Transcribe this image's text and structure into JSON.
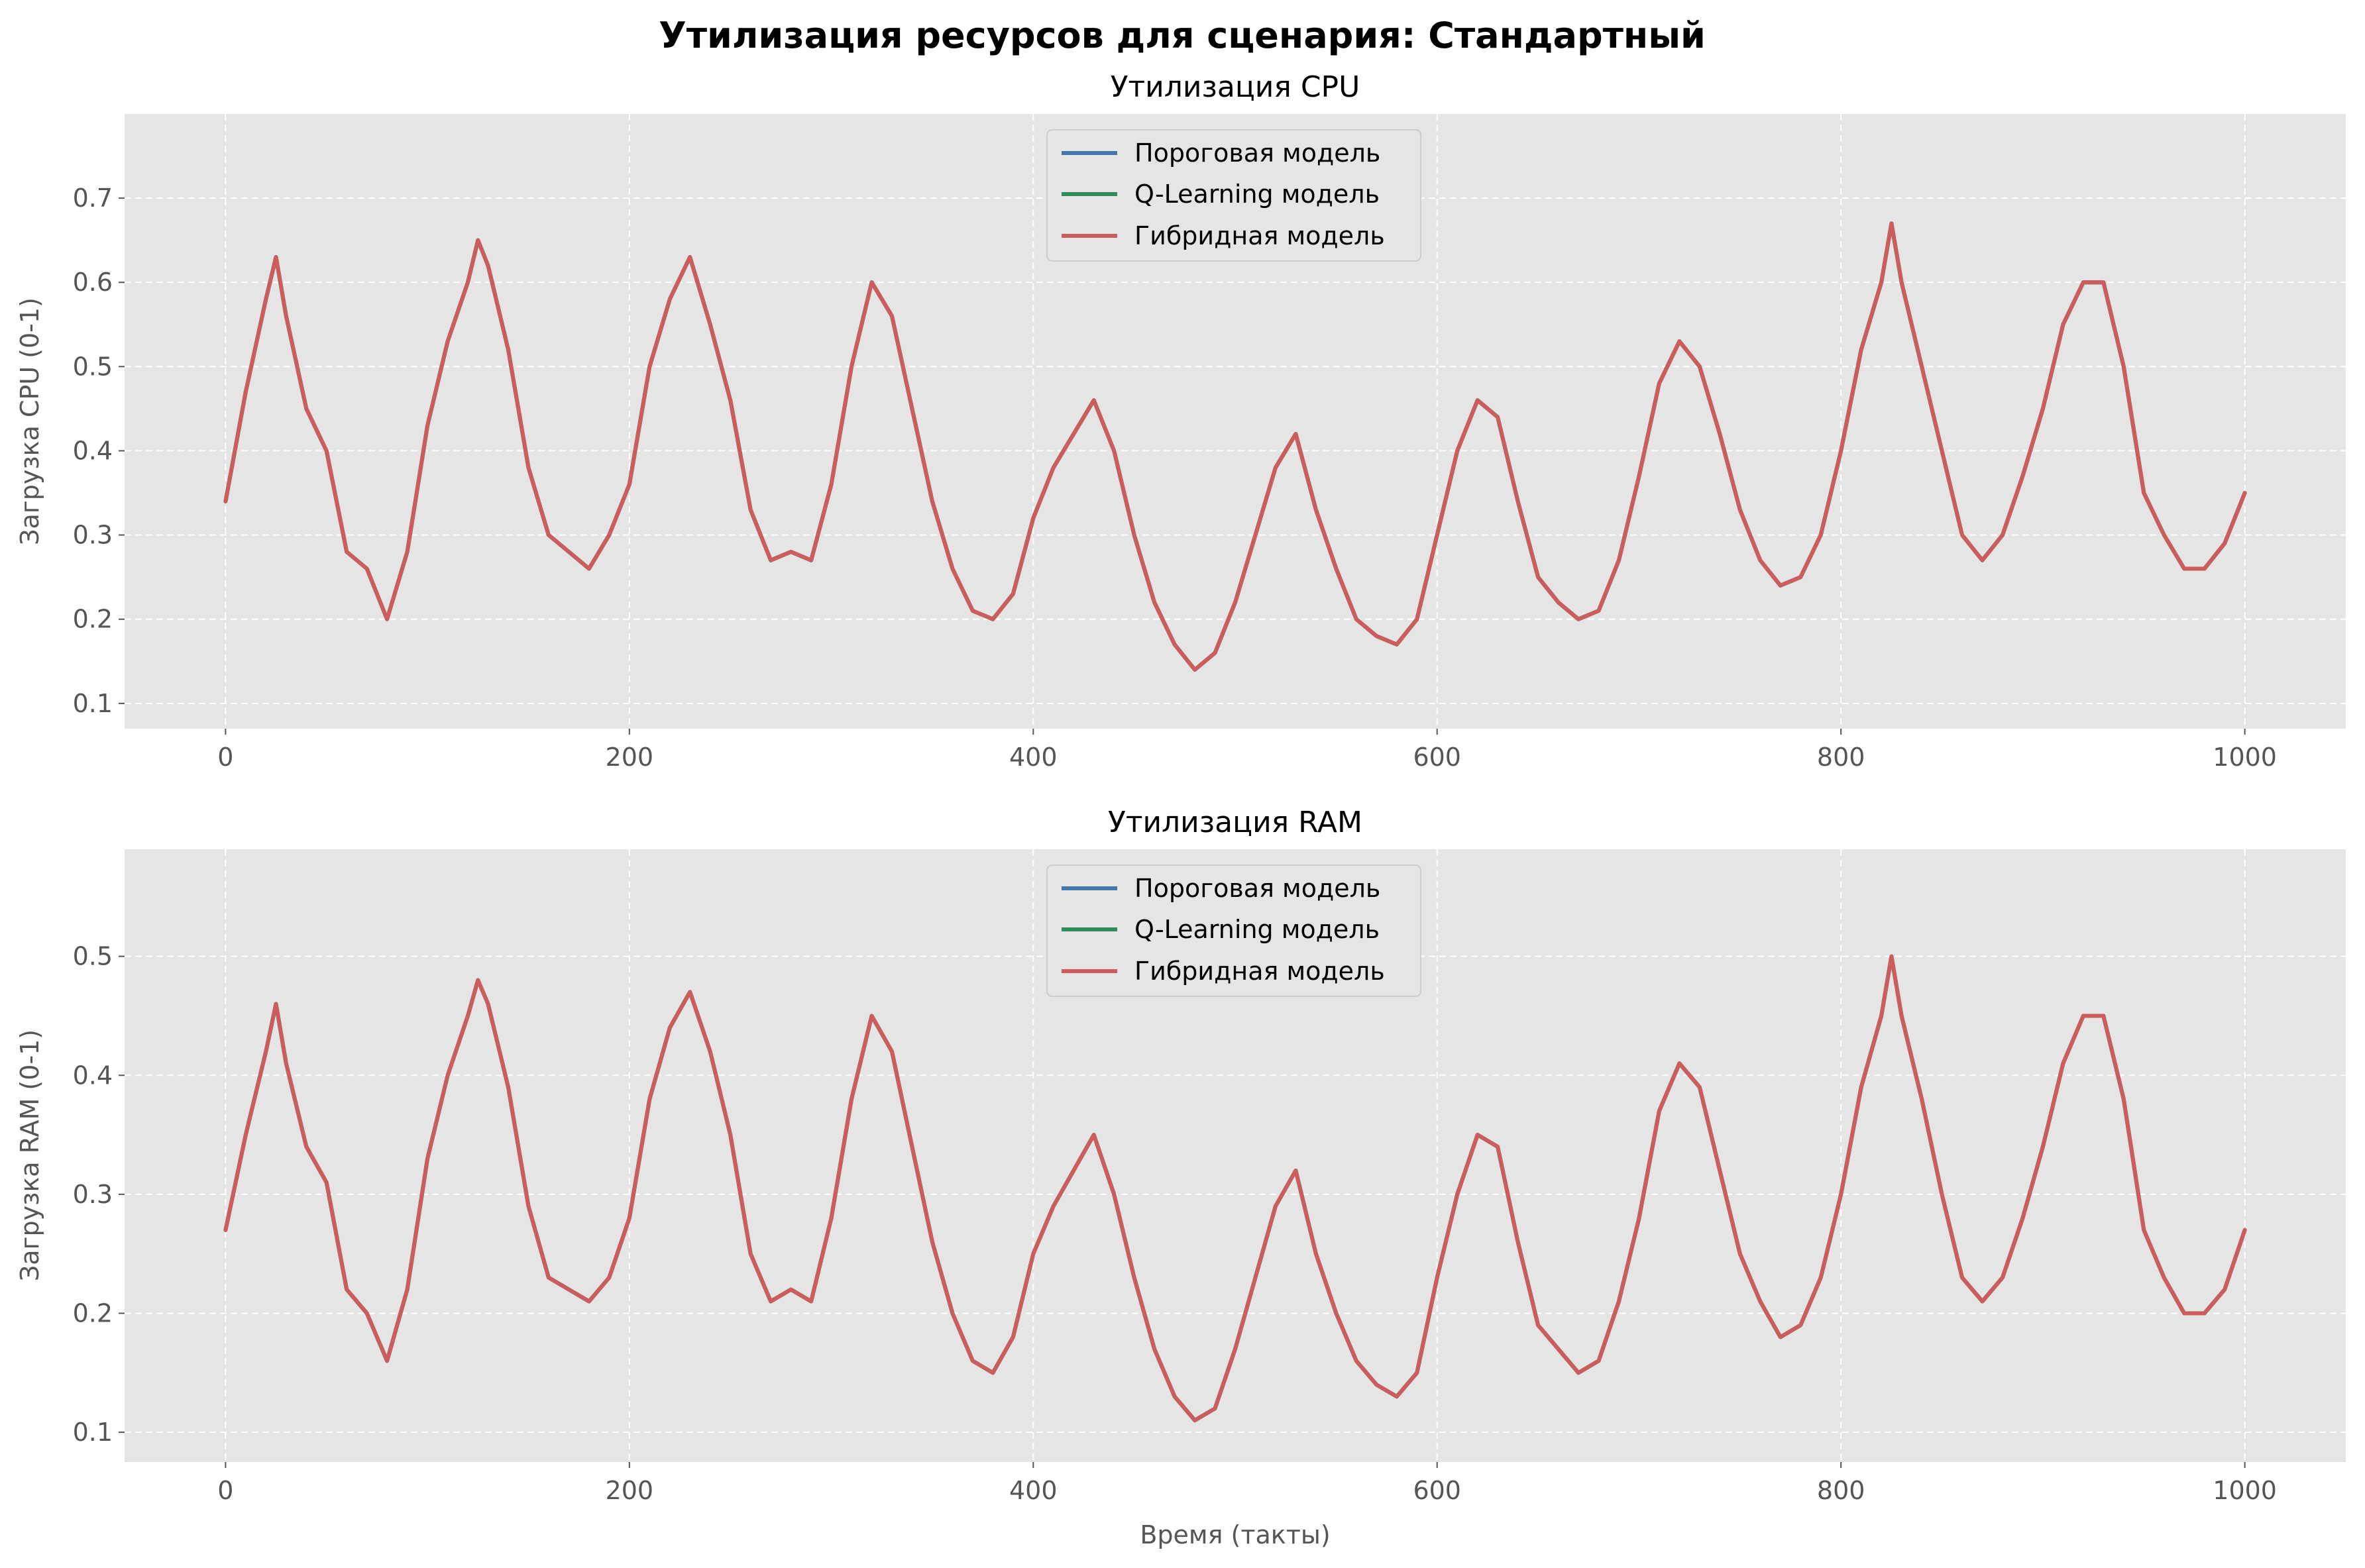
{
  "figure": {
    "suptitle": "Утилизация ресурсов для сценария: Стандартный",
    "background": "#ffffff",
    "axes_facecolor": "#e5e5e5",
    "grid_color": "#ffffff"
  },
  "chart_data": [
    {
      "type": "line",
      "title": "Утилизация CPU",
      "xlabel": "",
      "ylabel": "Загрузка CPU (0-1)",
      "xlim": [
        -50,
        1050
      ],
      "ylim": [
        0.07,
        0.8
      ],
      "xticks": [
        0,
        200,
        400,
        600,
        800,
        1000
      ],
      "yticks": [
        0.1,
        0.2,
        0.3,
        0.4,
        0.5,
        0.6,
        0.7
      ],
      "ytick_labels": [
        "0.1",
        "0.2",
        "0.3",
        "0.4",
        "0.5",
        "0.6",
        "0.7"
      ],
      "grid": true,
      "legend_position": "top-center",
      "series": [
        {
          "name": "Пороговая модель",
          "color": "#4477aa"
        },
        {
          "name": "Q-Learning модель",
          "color": "#2e8b57"
        },
        {
          "name": "Гибридная модель",
          "color": "#cd5c5c"
        }
      ],
      "x": [
        0,
        10,
        20,
        25,
        30,
        40,
        50,
        60,
        70,
        80,
        90,
        100,
        110,
        120,
        125,
        130,
        140,
        150,
        160,
        170,
        180,
        190,
        200,
        210,
        220,
        230,
        240,
        250,
        260,
        270,
        280,
        290,
        300,
        310,
        320,
        330,
        340,
        350,
        360,
        370,
        380,
        390,
        400,
        410,
        420,
        430,
        440,
        450,
        460,
        470,
        480,
        490,
        500,
        510,
        520,
        530,
        540,
        550,
        560,
        570,
        580,
        590,
        600,
        610,
        620,
        630,
        640,
        650,
        660,
        670,
        680,
        690,
        700,
        710,
        720,
        730,
        740,
        750,
        760,
        770,
        780,
        790,
        800,
        810,
        820,
        825,
        830,
        840,
        850,
        860,
        870,
        880,
        890,
        900,
        910,
        920,
        930,
        940,
        950,
        960,
        970,
        980,
        990,
        1000
      ],
      "values": [
        0.34,
        0.47,
        0.58,
        0.63,
        0.56,
        0.45,
        0.4,
        0.28,
        0.26,
        0.2,
        0.28,
        0.43,
        0.53,
        0.6,
        0.65,
        0.62,
        0.52,
        0.38,
        0.3,
        0.28,
        0.26,
        0.3,
        0.36,
        0.5,
        0.58,
        0.63,
        0.55,
        0.46,
        0.33,
        0.27,
        0.28,
        0.27,
        0.36,
        0.5,
        0.6,
        0.56,
        0.45,
        0.34,
        0.26,
        0.21,
        0.2,
        0.23,
        0.32,
        0.38,
        0.42,
        0.46,
        0.4,
        0.3,
        0.22,
        0.17,
        0.14,
        0.16,
        0.22,
        0.3,
        0.38,
        0.42,
        0.33,
        0.26,
        0.2,
        0.18,
        0.17,
        0.2,
        0.3,
        0.4,
        0.46,
        0.44,
        0.34,
        0.25,
        0.22,
        0.2,
        0.21,
        0.27,
        0.37,
        0.48,
        0.53,
        0.5,
        0.42,
        0.33,
        0.27,
        0.24,
        0.25,
        0.3,
        0.4,
        0.52,
        0.6,
        0.67,
        0.6,
        0.5,
        0.4,
        0.3,
        0.27,
        0.3,
        0.37,
        0.45,
        0.55,
        0.6,
        0.6,
        0.5,
        0.35,
        0.3,
        0.26,
        0.26,
        0.29,
        0.35
      ]
    },
    {
      "type": "line",
      "title": "Утилизация RAM",
      "xlabel": "Время (такты)",
      "ylabel": "Загрузка RAM (0-1)",
      "xlim": [
        -50,
        1050
      ],
      "ylim": [
        0.075,
        0.59
      ],
      "xticks": [
        0,
        200,
        400,
        600,
        800,
        1000
      ],
      "yticks": [
        0.1,
        0.2,
        0.3,
        0.4,
        0.5
      ],
      "ytick_labels": [
        "0.1",
        "0.2",
        "0.3",
        "0.4",
        "0.5"
      ],
      "grid": true,
      "legend_position": "top-center",
      "series": [
        {
          "name": "Пороговая модель",
          "color": "#4477aa"
        },
        {
          "name": "Q-Learning модель",
          "color": "#2e8b57"
        },
        {
          "name": "Гибридная модель",
          "color": "#cd5c5c"
        }
      ],
      "x": [
        0,
        10,
        20,
        25,
        30,
        40,
        50,
        60,
        70,
        80,
        90,
        100,
        110,
        120,
        125,
        130,
        140,
        150,
        160,
        170,
        180,
        190,
        200,
        210,
        220,
        230,
        240,
        250,
        260,
        270,
        280,
        290,
        300,
        310,
        320,
        330,
        340,
        350,
        360,
        370,
        380,
        390,
        400,
        410,
        420,
        430,
        440,
        450,
        460,
        470,
        480,
        490,
        500,
        510,
        520,
        530,
        540,
        550,
        560,
        570,
        580,
        590,
        600,
        610,
        620,
        630,
        640,
        650,
        660,
        670,
        680,
        690,
        700,
        710,
        720,
        730,
        740,
        750,
        760,
        770,
        780,
        790,
        800,
        810,
        820,
        825,
        830,
        840,
        850,
        860,
        870,
        880,
        890,
        900,
        910,
        920,
        930,
        940,
        950,
        960,
        970,
        980,
        990,
        1000
      ],
      "values": [
        0.27,
        0.35,
        0.42,
        0.46,
        0.41,
        0.34,
        0.31,
        0.22,
        0.2,
        0.16,
        0.22,
        0.33,
        0.4,
        0.45,
        0.48,
        0.46,
        0.39,
        0.29,
        0.23,
        0.22,
        0.21,
        0.23,
        0.28,
        0.38,
        0.44,
        0.47,
        0.42,
        0.35,
        0.25,
        0.21,
        0.22,
        0.21,
        0.28,
        0.38,
        0.45,
        0.42,
        0.34,
        0.26,
        0.2,
        0.16,
        0.15,
        0.18,
        0.25,
        0.29,
        0.32,
        0.35,
        0.3,
        0.23,
        0.17,
        0.13,
        0.11,
        0.12,
        0.17,
        0.23,
        0.29,
        0.32,
        0.25,
        0.2,
        0.16,
        0.14,
        0.13,
        0.15,
        0.23,
        0.3,
        0.35,
        0.34,
        0.26,
        0.19,
        0.17,
        0.15,
        0.16,
        0.21,
        0.28,
        0.37,
        0.41,
        0.39,
        0.32,
        0.25,
        0.21,
        0.18,
        0.19,
        0.23,
        0.3,
        0.39,
        0.45,
        0.5,
        0.45,
        0.38,
        0.3,
        0.23,
        0.21,
        0.23,
        0.28,
        0.34,
        0.41,
        0.45,
        0.45,
        0.38,
        0.27,
        0.23,
        0.2,
        0.2,
        0.22,
        0.27
      ]
    }
  ]
}
